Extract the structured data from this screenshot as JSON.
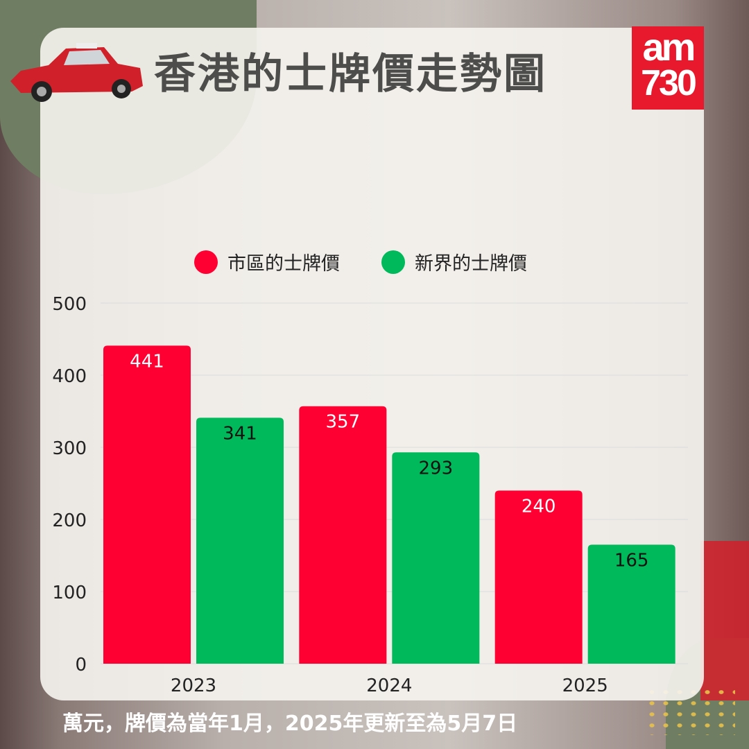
{
  "title": "香港的士牌價走勢圖",
  "logo": {
    "line1": "am",
    "line2": "730"
  },
  "footnote": "萬元，牌價為當年1月，2025年更新至為5月7日",
  "chart_data": {
    "type": "bar",
    "categories": [
      "2023",
      "2024",
      "2025"
    ],
    "series": [
      {
        "name": "市區的士牌價",
        "color": "#ff0033",
        "values": [
          441,
          357,
          240
        ]
      },
      {
        "name": "新界的士牌價",
        "color": "#00b95b",
        "values": [
          341,
          293,
          165
        ]
      }
    ],
    "ylim": [
      0,
      500
    ],
    "yticks": [
      "0",
      "100",
      "200",
      "300",
      "400",
      "500"
    ],
    "grid": true,
    "legend": "top"
  }
}
